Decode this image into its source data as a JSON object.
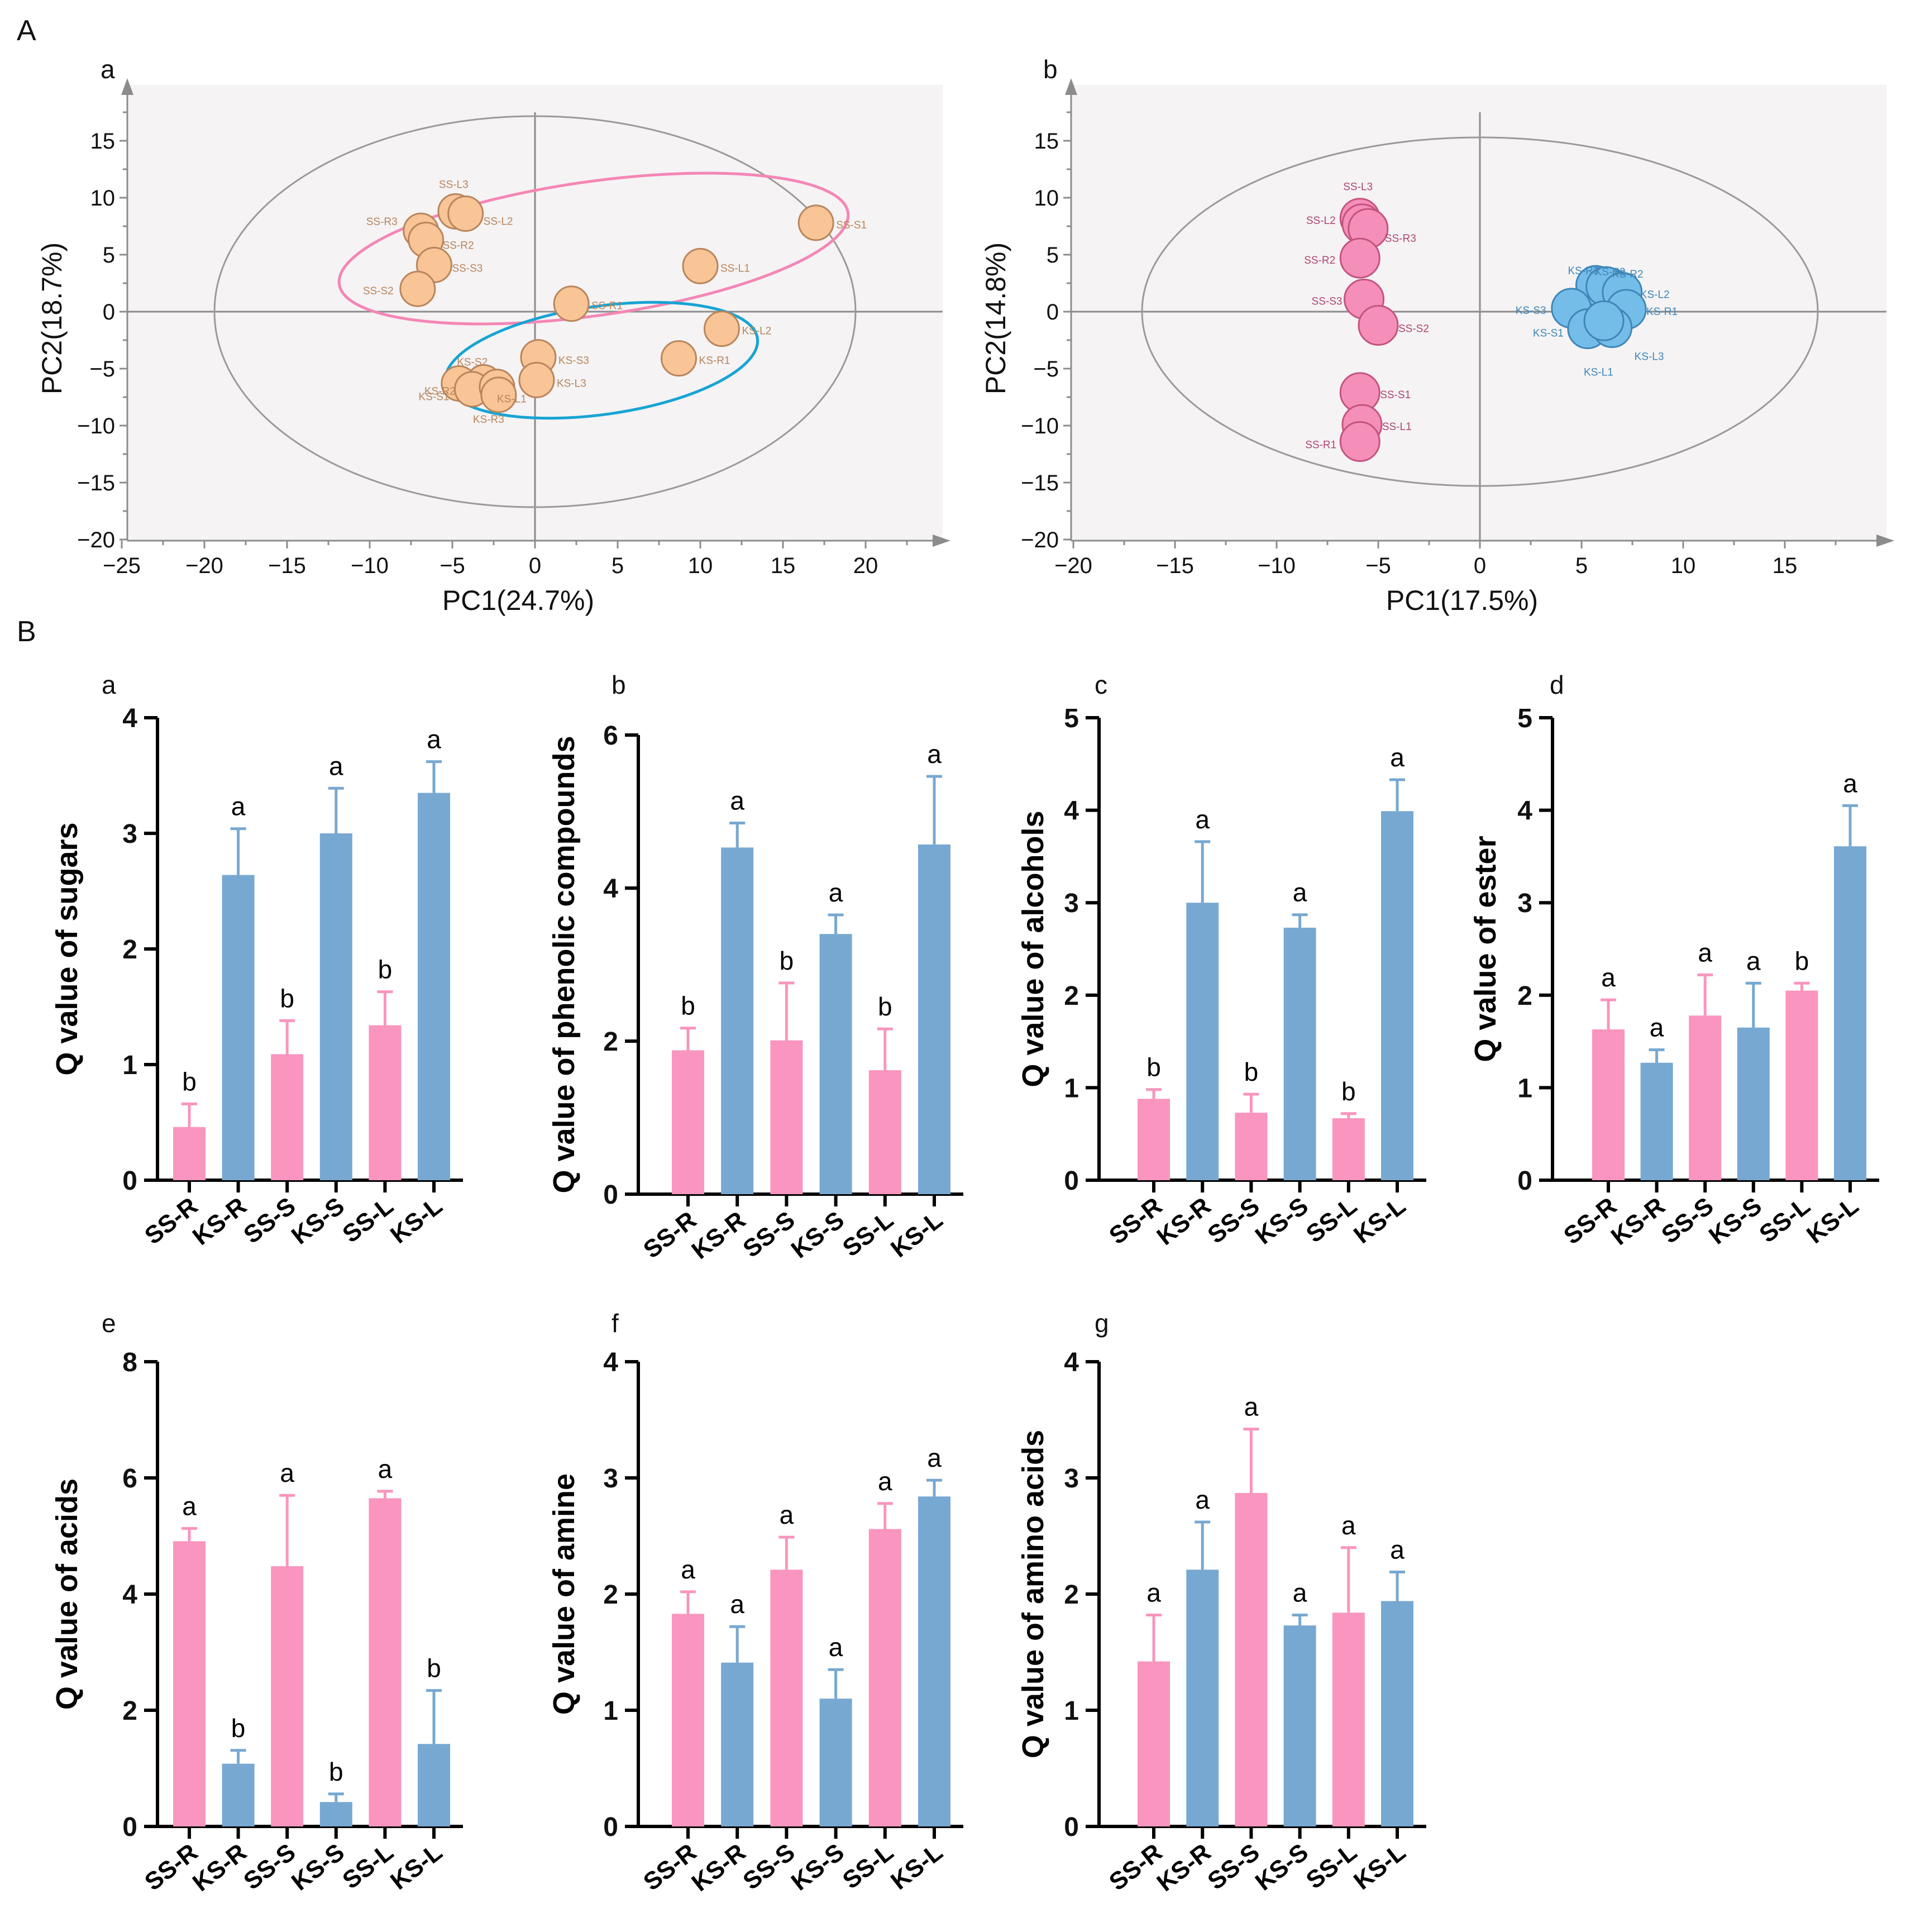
{
  "panel_letters": {
    "A": "A",
    "B": "B"
  },
  "colors": {
    "pink": "#F995BE",
    "blue": "#77A8D1",
    "orange_fill": "#F9C496",
    "orange_edge": "#B9855B",
    "pink_pt": "#F58FBA",
    "pink_edge": "#C4547F",
    "blue_pt": "#75BDE9",
    "blue_edge": "#3F86B8",
    "ellipse_pink": "#F486B5",
    "ellipse_blue": "#17A4D4",
    "pca_bg": "#F5F3F4"
  },
  "chart_data": [
    {
      "id": "Aa",
      "type": "scatter",
      "sub": "a",
      "xlabel": "PC1(24.7%)",
      "ylabel": "PC2(18.7%)",
      "xlim": [
        -25,
        25
      ],
      "ylim": [
        -20,
        18.5
      ],
      "xticks": [
        "−25",
        "−20",
        "−15",
        "−10",
        "−5",
        "0",
        "5",
        "10",
        "15",
        "20"
      ],
      "yticks": [
        "−20",
        "−15",
        "−10",
        "−5",
        "0",
        "5",
        "10",
        "15"
      ],
      "points": [
        {
          "label": "SS-L3",
          "x": -4.8,
          "y": 8.8,
          "group": "SS"
        },
        {
          "label": "SS-L2",
          "x": -4.2,
          "y": 8.6,
          "group": "SS"
        },
        {
          "label": "SS-R3",
          "x": -6.9,
          "y": 7.1,
          "group": "SS"
        },
        {
          "label": "SS-R2",
          "x": -6.6,
          "y": 6.3,
          "group": "SS"
        },
        {
          "label": "SS-S3",
          "x": -6.1,
          "y": 4.1,
          "group": "SS"
        },
        {
          "label": "SS-S2",
          "x": -7.1,
          "y": 2.0,
          "group": "SS"
        },
        {
          "label": "SS-S1",
          "x": 17.0,
          "y": 7.8,
          "group": "SS"
        },
        {
          "label": "SS-L1",
          "x": 10.0,
          "y": 4.0,
          "group": "SS"
        },
        {
          "label": "SS-R1",
          "x": 2.2,
          "y": 0.7,
          "group": "SS"
        },
        {
          "label": "KS-L2",
          "x": 11.3,
          "y": -1.5,
          "group": "KS"
        },
        {
          "label": "KS-R1",
          "x": 8.7,
          "y": -4.1,
          "group": "KS"
        },
        {
          "label": "KS-S3",
          "x": 0.2,
          "y": -4.0,
          "group": "KS"
        },
        {
          "label": "KS-L3",
          "x": 0.1,
          "y": -6.0,
          "group": "KS"
        },
        {
          "label": "KS-S2",
          "x": -3.1,
          "y": -6.2,
          "group": "KS"
        },
        {
          "label": "KS-R2",
          "x": -4.6,
          "y": -6.3,
          "group": "KS"
        },
        {
          "label": "KS-S1",
          "x": -3.8,
          "y": -6.8,
          "group": "KS"
        },
        {
          "label": "KS-L1",
          "x": -2.3,
          "y": -6.6,
          "group": "KS"
        },
        {
          "label": "KS-R3",
          "x": -2.2,
          "y": -7.3,
          "group": "KS"
        }
      ]
    },
    {
      "id": "Ab",
      "type": "scatter",
      "sub": "b",
      "xlabel": "PC1(17.5%)",
      "ylabel": "PC2(14.8%)",
      "xlim": [
        -20,
        20
      ],
      "ylim": [
        -20,
        18.5
      ],
      "xticks": [
        "−20",
        "−15",
        "−10",
        "−5",
        "0",
        "5",
        "10",
        "15"
      ],
      "yticks": [
        "−20",
        "−15",
        "−10",
        "−5",
        "0",
        "5",
        "10",
        "15"
      ],
      "points": [
        {
          "label": "SS-L3",
          "x": -5.9,
          "y": 8.2,
          "group": "SS"
        },
        {
          "label": "SS-L2",
          "x": -5.8,
          "y": 7.7,
          "group": "SS"
        },
        {
          "label": "SS-R3",
          "x": -5.5,
          "y": 7.3,
          "group": "SS"
        },
        {
          "label": "SS-R2",
          "x": -5.9,
          "y": 4.7,
          "group": "SS"
        },
        {
          "label": "SS-S3",
          "x": -5.7,
          "y": 1.1,
          "group": "SS"
        },
        {
          "label": "SS-S2",
          "x": -5.0,
          "y": -1.2,
          "group": "SS"
        },
        {
          "label": "SS-S1",
          "x": -5.9,
          "y": -7.1,
          "group": "SS"
        },
        {
          "label": "SS-L1",
          "x": -5.8,
          "y": -9.9,
          "group": "SS"
        },
        {
          "label": "SS-R1",
          "x": -5.9,
          "y": -11.4,
          "group": "SS"
        },
        {
          "label": "KS-R3",
          "x": 5.7,
          "y": 2.3,
          "group": "KS"
        },
        {
          "label": "KS-R2",
          "x": 6.5,
          "y": 2.0,
          "group": "KS"
        },
        {
          "label": "KS-S2",
          "x": 6.2,
          "y": 2.2,
          "group": "KS"
        },
        {
          "label": "KS-L2",
          "x": 7.0,
          "y": 1.7,
          "group": "KS"
        },
        {
          "label": "KS-S3",
          "x": 4.5,
          "y": 0.3,
          "group": "KS"
        },
        {
          "label": "KS-R1",
          "x": 7.2,
          "y": 0.2,
          "group": "KS"
        },
        {
          "label": "KS-S1",
          "x": 5.3,
          "y": -1.5,
          "group": "KS"
        },
        {
          "label": "KS-L3",
          "x": 6.5,
          "y": -1.4,
          "group": "KS"
        },
        {
          "label": "KS-L1",
          "x": 6.1,
          "y": -0.8,
          "group": "KS"
        }
      ]
    },
    {
      "id": "Ba",
      "type": "bar",
      "sub": "a",
      "ylabel": "Q value of sugars",
      "ylim": [
        0,
        4
      ],
      "yticks": [
        "0",
        "1",
        "2",
        "3",
        "4"
      ],
      "categories": [
        "SS-R",
        "KS-R",
        "SS-S",
        "KS-S",
        "SS-L",
        "KS-L"
      ],
      "values": [
        0.46,
        2.64,
        1.09,
        3.0,
        1.34,
        3.35
      ],
      "errors": [
        0.2,
        0.4,
        0.29,
        0.39,
        0.29,
        0.27
      ],
      "letters": [
        "b",
        "a",
        "b",
        "a",
        "b",
        "a"
      ]
    },
    {
      "id": "Bb",
      "type": "bar",
      "sub": "b",
      "ylabel": "Q value of phenolic compounds",
      "ylim": [
        0,
        6
      ],
      "yticks": [
        "0",
        "2",
        "4",
        "6"
      ],
      "categories": [
        "SS-R",
        "KS-R",
        "SS-S",
        "KS-S",
        "SS-L",
        "KS-L"
      ],
      "values": [
        1.88,
        4.53,
        2.01,
        3.4,
        1.62,
        4.57
      ],
      "errors": [
        0.29,
        0.32,
        0.75,
        0.25,
        0.54,
        0.89
      ],
      "letters": [
        "b",
        "a",
        "b",
        "a",
        "b",
        "a"
      ]
    },
    {
      "id": "Bc",
      "type": "bar",
      "sub": "c",
      "ylabel": "Q value of alcohols",
      "ylim": [
        0,
        5
      ],
      "yticks": [
        "0",
        "1",
        "2",
        "3",
        "4",
        "5"
      ],
      "categories": [
        "SS-R",
        "KS-R",
        "SS-S",
        "KS-S",
        "SS-L",
        "KS-L"
      ],
      "values": [
        0.88,
        3.0,
        0.73,
        2.73,
        0.67,
        3.99
      ],
      "errors": [
        0.1,
        0.66,
        0.2,
        0.14,
        0.05,
        0.34
      ],
      "letters": [
        "b",
        "a",
        "b",
        "a",
        "b",
        "a"
      ]
    },
    {
      "id": "Bd",
      "type": "bar",
      "sub": "d",
      "ylabel": "Q value of ester",
      "ylim": [
        0,
        5
      ],
      "yticks": [
        "0",
        "1",
        "2",
        "3",
        "4",
        "5"
      ],
      "categories": [
        "SS-R",
        "KS-R",
        "SS-S",
        "KS-S",
        "SS-L",
        "KS-L"
      ],
      "values": [
        1.63,
        1.27,
        1.78,
        1.65,
        2.05,
        3.61
      ],
      "errors": [
        0.32,
        0.14,
        0.44,
        0.48,
        0.08,
        0.44
      ],
      "letters": [
        "a",
        "a",
        "a",
        "a",
        "b",
        "a"
      ]
    },
    {
      "id": "Be",
      "type": "bar",
      "sub": "e",
      "ylabel": "Q value of acids",
      "ylim": [
        0,
        8
      ],
      "yticks": [
        "0",
        "2",
        "4",
        "6",
        "8"
      ],
      "categories": [
        "SS-R",
        "KS-R",
        "SS-S",
        "KS-S",
        "SS-L",
        "KS-L"
      ],
      "values": [
        4.91,
        1.08,
        4.48,
        0.42,
        5.65,
        1.42
      ],
      "errors": [
        0.22,
        0.23,
        1.22,
        0.14,
        0.12,
        0.92
      ],
      "letters": [
        "a",
        "b",
        "a",
        "b",
        "a",
        "b"
      ]
    },
    {
      "id": "Bf",
      "type": "bar",
      "sub": "f",
      "ylabel": "Q value of amine",
      "ylim": [
        0,
        4
      ],
      "yticks": [
        "0",
        "1",
        "2",
        "3",
        "4"
      ],
      "categories": [
        "SS-R",
        "KS-R",
        "SS-S",
        "KS-S",
        "SS-L",
        "KS-L"
      ],
      "values": [
        1.83,
        1.41,
        2.21,
        1.1,
        2.56,
        2.84
      ],
      "errors": [
        0.19,
        0.31,
        0.28,
        0.25,
        0.22,
        0.14
      ],
      "letters": [
        "a",
        "a",
        "a",
        "a",
        "a",
        "a"
      ]
    },
    {
      "id": "Bg",
      "type": "bar",
      "sub": "g",
      "ylabel": "Q value of amino acids",
      "ylim": [
        0,
        4
      ],
      "yticks": [
        "0",
        "1",
        "2",
        "3",
        "4"
      ],
      "categories": [
        "SS-R",
        "KS-R",
        "SS-S",
        "KS-S",
        "SS-L",
        "KS-L"
      ],
      "values": [
        1.42,
        2.21,
        2.87,
        1.73,
        1.84,
        1.94
      ],
      "errors": [
        0.4,
        0.41,
        0.55,
        0.09,
        0.56,
        0.25
      ],
      "letters": [
        "a",
        "a",
        "a",
        "a",
        "a",
        "a"
      ]
    }
  ]
}
